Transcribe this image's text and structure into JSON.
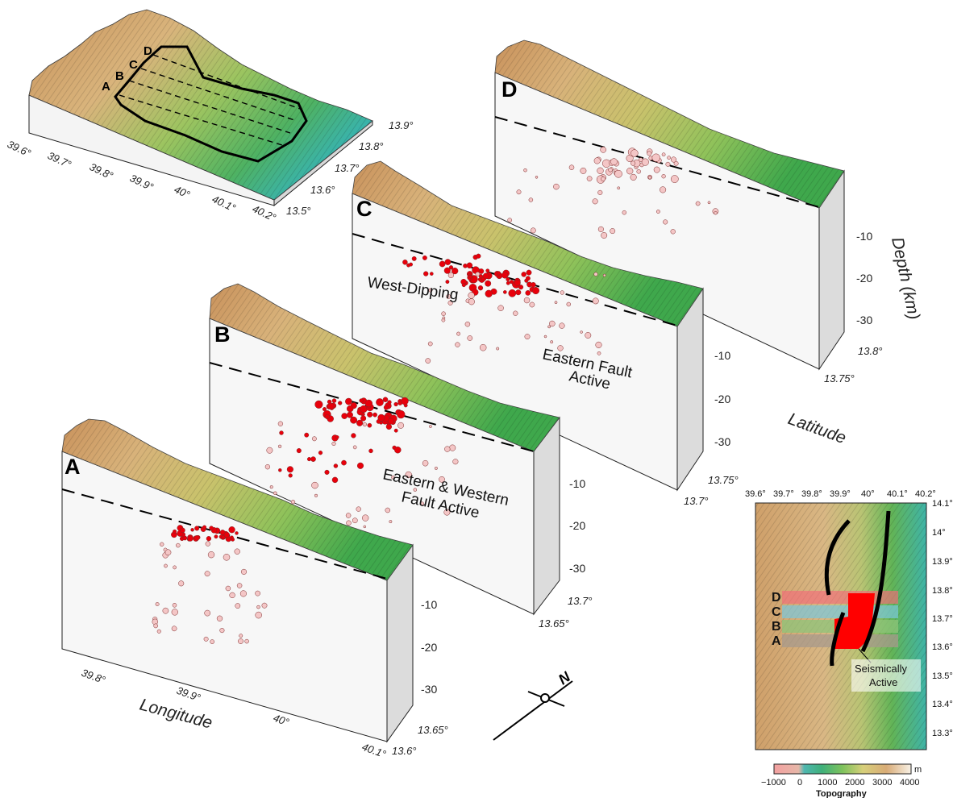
{
  "overview": {
    "profile_letters": [
      "D",
      "C",
      "B",
      "A"
    ],
    "lon_ticks": [
      "39.6°",
      "39.7°",
      "39.8°",
      "39.9°",
      "40°",
      "40.1°",
      "40.2°"
    ],
    "lat_ticks": [
      "13.9°",
      "13.8°",
      "13.7°",
      "13.6°",
      "13.5°"
    ]
  },
  "sections": [
    {
      "id": "A",
      "label": "A",
      "depth_ticks": [
        "-10",
        "-20",
        "-30"
      ],
      "lat_ticks": [
        "13.65°",
        "13.6°"
      ],
      "lon_ticks": [
        "39.8°",
        "39.9°",
        "40°",
        "40.1°"
      ]
    },
    {
      "id": "B",
      "label": "B",
      "depth_ticks": [
        "-10",
        "-20",
        "-30"
      ],
      "lat_ticks": [
        "13.7°",
        "13.65°"
      ]
    },
    {
      "id": "C",
      "label": "C",
      "depth_ticks": [
        "-10",
        "-20",
        "-30"
      ],
      "lat_ticks": [
        "13.75°",
        "13.7°"
      ]
    },
    {
      "id": "D",
      "label": "D",
      "depth_ticks": [
        "-10",
        "-20",
        "-30"
      ],
      "lat_ticks": [
        "13.8°",
        "13.75°"
      ]
    }
  ],
  "annotations": {
    "west_dipping": "West-Dipping",
    "eastern_fault_line1": "Eastern Fault",
    "eastern_fault_line2": "Active",
    "ew_line1": "Eastern & Western",
    "ew_line2": "Fault Active"
  },
  "axes": {
    "longitude": "Longitude",
    "latitude": "Latitude",
    "depth": "Depth (km)",
    "north": "N"
  },
  "inset": {
    "lon_ticks": [
      "39.6°",
      "39.7°",
      "39.8°",
      "39.9°",
      "40°",
      "40.1°",
      "40.2°"
    ],
    "lat_ticks": [
      "14.1°",
      "14°",
      "13.9°",
      "13.8°",
      "13.7°",
      "13.6°",
      "13.5°",
      "13.4°",
      "13.3°"
    ],
    "profiles": [
      "D",
      "C",
      "B",
      "A"
    ],
    "seismic_line1": "Seismically",
    "seismic_line2": "Active"
  },
  "colorbar": {
    "ticks": [
      "−1000",
      "0",
      "1000",
      "2000",
      "3000",
      "4000"
    ],
    "unit": "m",
    "title": "Topography"
  },
  "colors": {
    "earthquake_red": "#e8000b",
    "earthquake_pink": "#f4c6c6",
    "relief_brown": "#c99a63",
    "relief_green": "#5db04c",
    "relief_teal": "#46b5a8",
    "panel_face": "#f7f7f7",
    "panel_side": "#dcdcdc"
  }
}
